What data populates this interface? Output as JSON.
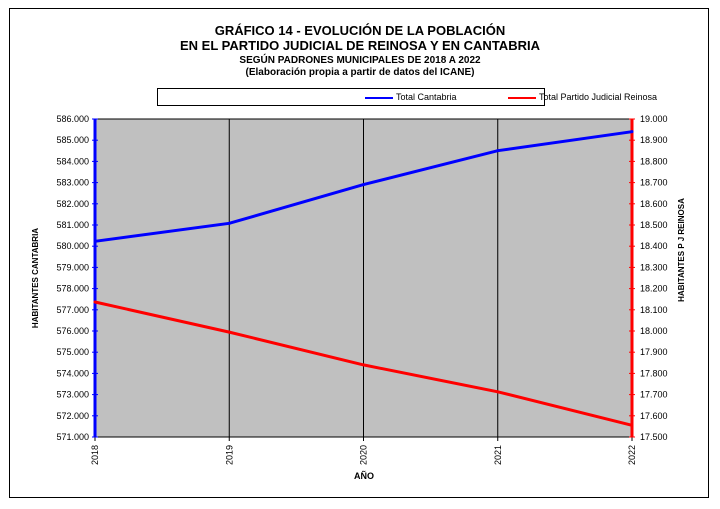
{
  "chart_data": {
    "type": "line",
    "title_lines": [
      "GRÁFICO 14 - EVOLUCIÓN DE LA POBLACIÓN",
      "EN EL PARTIDO JUDICIAL DE REINOSA Y EN CANTABRIA",
      "SEGÚN PADRONES MUNICIPALES DE 2018 A 2022",
      "(Elaboración propia a partir de datos del ICANE)"
    ],
    "categories": [
      "2018",
      "2019",
      "2020",
      "2021",
      "2022"
    ],
    "xlabel": "AÑO",
    "ylabel_left": "HABITANTES CANTABRIA",
    "ylabel_right": "HABITANTES P J REINOSA",
    "y_left": {
      "min": 571000,
      "max": 586000,
      "ticks": [
        "571.000",
        "572.000",
        "573.000",
        "574.000",
        "575.000",
        "576.000",
        "577.000",
        "578.000",
        "579.000",
        "580.000",
        "581.000",
        "582.000",
        "583.000",
        "584.000",
        "585.000",
        "586.000"
      ]
    },
    "y_right": {
      "min": 17500,
      "max": 19000,
      "ticks": [
        "17.500",
        "17.600",
        "17.700",
        "17.800",
        "17.900",
        "18.000",
        "18.100",
        "18.200",
        "18.300",
        "18.400",
        "18.500",
        "18.600",
        "18.700",
        "18.800",
        "18.900",
        "19.000"
      ]
    },
    "series": [
      {
        "name": "Total Cantabria",
        "axis": "left",
        "color": "#0000ff",
        "values": [
          580229,
          581078,
          582905,
          584507,
          585402
        ]
      },
      {
        "name": "Total Partido Judicial Reinosa",
        "axis": "right",
        "color": "#ff0000",
        "values": [
          18137,
          17995,
          17840,
          17713,
          17555
        ]
      }
    ],
    "legend_position": "top",
    "grid": true,
    "plot_background": "#c0c0c0"
  }
}
